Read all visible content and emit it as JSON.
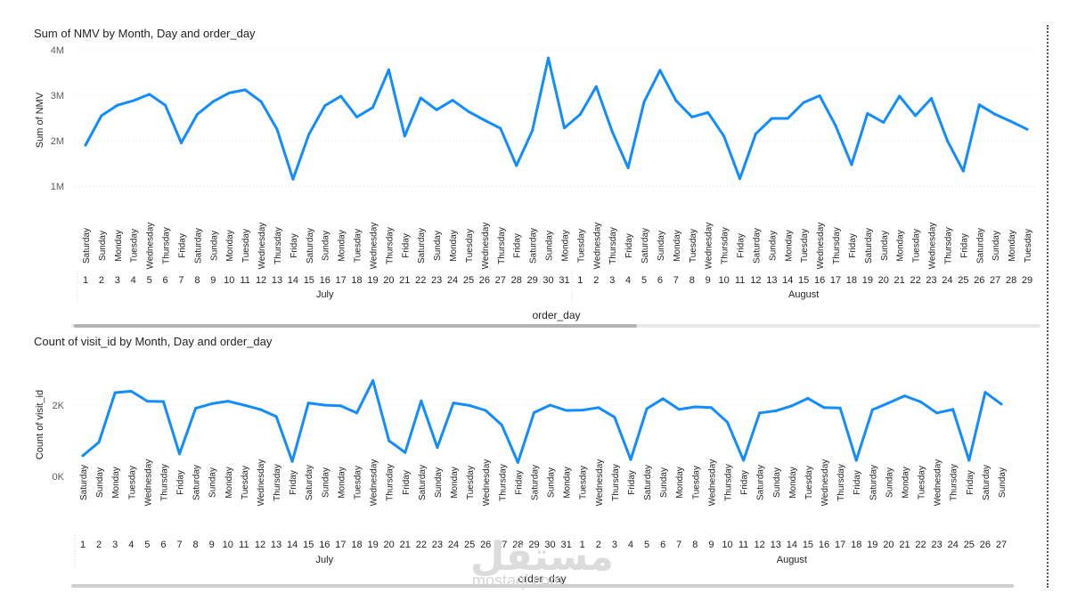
{
  "colors": {
    "line": "#118DFF",
    "text": "#252423",
    "muted": "#605E5C",
    "grid": "#E1E1E1"
  },
  "watermark": {
    "brand": "مستقل",
    "site": "mostaql.com"
  },
  "chart_data": [
    {
      "type": "line",
      "title": "Sum of NMV by Month, Day and order_day",
      "xlabel": "order_day",
      "ylabel": "Sum of NMV",
      "ylim": [
        0.9,
        4.0
      ],
      "yticks": [
        {
          "value": 1,
          "label": "1M"
        },
        {
          "value": 2,
          "label": "2M"
        },
        {
          "value": 3,
          "label": "3M"
        },
        {
          "value": 4,
          "label": "4M"
        }
      ],
      "months": [
        {
          "name": "July",
          "start": 0,
          "end": 30
        },
        {
          "name": "August",
          "start": 31,
          "end": 59
        }
      ],
      "days": [
        1,
        2,
        3,
        4,
        5,
        6,
        7,
        8,
        9,
        10,
        11,
        12,
        13,
        14,
        15,
        16,
        17,
        18,
        19,
        20,
        21,
        22,
        23,
        24,
        25,
        26,
        27,
        28,
        29,
        30,
        31,
        1,
        2,
        3,
        4,
        5,
        6,
        7,
        8,
        9,
        10,
        11,
        12,
        13,
        14,
        15,
        16,
        17,
        18,
        19,
        20,
        21,
        22,
        23,
        24,
        25,
        26,
        27,
        28,
        29
      ],
      "weekdays": [
        "Saturday",
        "Sunday",
        "Monday",
        "Tuesday",
        "Wednesday",
        "Thursday",
        "Friday",
        "Saturday",
        "Sunday",
        "Monday",
        "Tuesday",
        "Wednesday",
        "Thursday",
        "Friday",
        "Saturday",
        "Sunday",
        "Monday",
        "Tuesday",
        "Wednesday",
        "Thursday",
        "Friday",
        "Saturday",
        "Sunday",
        "Monday",
        "Tuesday",
        "Wednesday",
        "Thursday",
        "Friday",
        "Saturday",
        "Sunday",
        "Monday",
        "Tuesday",
        "Wednesday",
        "Thursday",
        "Friday",
        "Saturday",
        "Sunday",
        "Monday",
        "Tuesday",
        "Wednesday",
        "Thursday",
        "Friday",
        "Saturday",
        "Sunday",
        "Monday",
        "Tuesday",
        "Wednesday",
        "Thursday",
        "Friday",
        "Saturday",
        "Sunday",
        "Monday",
        "Tuesday",
        "Wednesday",
        "Thursday",
        "Friday",
        "Saturday",
        "Sunday",
        "Monday",
        "Tuesday"
      ],
      "values": [
        1.9,
        2.55,
        2.78,
        2.88,
        3.02,
        2.78,
        1.95,
        2.58,
        2.86,
        3.05,
        3.12,
        2.86,
        2.25,
        1.15,
        2.14,
        2.77,
        2.98,
        2.52,
        2.73,
        3.56,
        2.1,
        2.94,
        2.68,
        2.89,
        2.64,
        2.45,
        2.27,
        1.45,
        2.22,
        3.82,
        2.28,
        2.58,
        3.19,
        2.2,
        1.4,
        2.85,
        3.55,
        2.88,
        2.52,
        2.62,
        2.1,
        1.16,
        2.15,
        2.49,
        2.49,
        2.84,
        2.99,
        2.33,
        1.47,
        2.6,
        2.4,
        2.98,
        2.55,
        2.93,
        2.0,
        1.33,
        2.79,
        2.58,
        2.42,
        2.25
      ]
    },
    {
      "type": "line",
      "title": "Count of visit_id by Month, Day and order_day",
      "xlabel": "order_day",
      "ylabel": "Count of visit_id",
      "ylim": [
        0,
        2900
      ],
      "yticks": [
        {
          "value": 0,
          "label": "0K"
        },
        {
          "value": 2000,
          "label": "2K"
        }
      ],
      "months": [
        {
          "name": "July",
          "start": 0,
          "end": 30
        },
        {
          "name": "August",
          "start": 31,
          "end": 57
        }
      ],
      "days": [
        1,
        2,
        3,
        4,
        5,
        6,
        7,
        8,
        9,
        10,
        11,
        12,
        13,
        14,
        15,
        16,
        17,
        18,
        19,
        20,
        21,
        22,
        23,
        24,
        25,
        26,
        27,
        28,
        29,
        30,
        31,
        1,
        2,
        3,
        4,
        5,
        6,
        7,
        8,
        9,
        10,
        11,
        12,
        13,
        14,
        15,
        16,
        17,
        18,
        19,
        20,
        21,
        22,
        23,
        24,
        25,
        26,
        27
      ],
      "weekdays": [
        "Saturday",
        "Sunday",
        "Monday",
        "Tuesday",
        "Wednesday",
        "Thursday",
        "Friday",
        "Saturday",
        "Sunday",
        "Monday",
        "Tuesday",
        "Wednesday",
        "Thursday",
        "Friday",
        "Saturday",
        "Sunday",
        "Monday",
        "Tuesday",
        "Wednesday",
        "Thursday",
        "Friday",
        "Saturday",
        "Sunday",
        "Monday",
        "Tuesday",
        "Wednesday",
        "Thursday",
        "Friday",
        "Saturday",
        "Sunday",
        "Monday",
        "Tuesday",
        "Wednesday",
        "Thursday",
        "Friday",
        "Saturday",
        "Sunday",
        "Monday",
        "Tuesday",
        "Wednesday",
        "Thursday",
        "Friday",
        "Saturday",
        "Sunday",
        "Monday",
        "Tuesday",
        "Wednesday",
        "Thursday",
        "Friday",
        "Saturday",
        "Sunday",
        "Monday",
        "Tuesday",
        "Wednesday",
        "Thursday",
        "Friday",
        "Saturday",
        "Sunday"
      ],
      "values": [
        580,
        960,
        2350,
        2390,
        2110,
        2100,
        630,
        1910,
        2040,
        2110,
        2000,
        1880,
        1680,
        420,
        2060,
        2000,
        1980,
        1780,
        2690,
        1000,
        670,
        2120,
        810,
        2060,
        1990,
        1850,
        1440,
        390,
        1790,
        2000,
        1850,
        1860,
        1930,
        1660,
        470,
        1900,
        2180,
        1880,
        1950,
        1930,
        1520,
        450,
        1780,
        1840,
        1980,
        2190,
        1930,
        1920,
        450,
        1870,
        2060,
        2260,
        2090,
        1780,
        1880,
        450,
        2360,
        2030
      ]
    }
  ]
}
